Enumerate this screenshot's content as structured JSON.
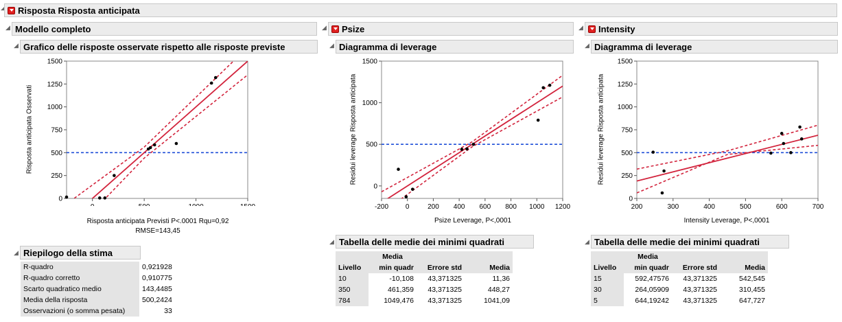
{
  "report": {
    "title": "Risposta Risposta anticipata"
  },
  "panels": {
    "model": {
      "title": "Modello completo",
      "chart_title": "Grafico delle risposte osservate rispetto alle risposte previste",
      "xlabel": "Risposta anticipata Previsti P<.0001 Rqu=0,92",
      "xlabel2": "RMSE=143,45",
      "ylabel": "Risposta anticipata Osservati"
    },
    "psize": {
      "title": "Psize",
      "chart_title": "Diagramma di leverage",
      "xlabel": "Psize Leverage, P<,0001",
      "ylabel": "Residui leverage Risposta anticipata"
    },
    "intensity": {
      "title": "Intensity",
      "chart_title": "Diagramma di leverage",
      "xlabel": "Intensity Leverage, P<,0001",
      "ylabel": "Residui leverage Risposta anticipata"
    }
  },
  "summary": {
    "title": "Riepilogo della stima",
    "rows": [
      {
        "label": "R-quadro",
        "value": "0,921928"
      },
      {
        "label": "R-quadro corretto",
        "value": "0,910775"
      },
      {
        "label": "Scarto quadratico medio",
        "value": "143,4485"
      },
      {
        "label": "Media della risposta",
        "value": "500,2424"
      },
      {
        "label": "Osservazioni (o somma pesata)",
        "value": "33"
      }
    ]
  },
  "lsm_psize": {
    "title": "Tabella delle medie dei minimi quadrati",
    "h_media_top": "Media",
    "h_level": "Livello",
    "h_lsm": "min quadr",
    "h_se": "Errore std",
    "h_mean": "Media",
    "rows": [
      [
        "10",
        "-10,108",
        "43,371325",
        "11,36"
      ],
      [
        "350",
        "461,359",
        "43,371325",
        "448,27"
      ],
      [
        "784",
        "1049,476",
        "43,371325",
        "1041,09"
      ]
    ]
  },
  "lsm_intensity": {
    "title": "Tabella delle medie dei minimi quadrati",
    "h_media_top": "Media",
    "h_level": "Livello",
    "h_lsm": "min quadr",
    "h_se": "Errore std",
    "h_mean": "Media",
    "rows": [
      [
        "15",
        "592,47576",
        "43,371325",
        "542,545"
      ],
      [
        "30",
        "264,05909",
        "43,371325",
        "310,455"
      ],
      [
        "5",
        "644,19242",
        "43,371325",
        "647,727"
      ]
    ]
  },
  "colors": {
    "fit": "#d2233c",
    "mean": "#1f4fd8"
  },
  "chart_data": [
    {
      "type": "scatter",
      "name": "actual-by-predicted",
      "xlim": [
        -250,
        1500
      ],
      "ylim": [
        0,
        1500
      ],
      "xticks": [
        0,
        500,
        1000,
        1500
      ],
      "yticks": [
        0,
        250,
        500,
        750,
        1000,
        1250,
        1500
      ],
      "mean_y": 500,
      "fit": [
        [
          -250,
          -250
        ],
        [
          1500,
          1500
        ]
      ],
      "band_upper": [
        [
          -250,
          -60
        ],
        [
          500,
          560
        ],
        [
          1500,
          1650
        ]
      ],
      "band_lower": [
        [
          -250,
          -440
        ],
        [
          500,
          440
        ],
        [
          1500,
          1350
        ]
      ],
      "points": [
        [
          -250,
          15
        ],
        [
          70,
          5
        ],
        [
          120,
          5
        ],
        [
          210,
          250
        ],
        [
          540,
          540
        ],
        [
          560,
          555
        ],
        [
          600,
          585
        ],
        [
          810,
          600
        ],
        [
          1150,
          1260
        ],
        [
          1190,
          1320
        ]
      ]
    },
    {
      "type": "scatter",
      "name": "psize-leverage",
      "xlim": [
        -200,
        1200
      ],
      "ylim": [
        -150,
        1500
      ],
      "xticks": [
        -200,
        0,
        200,
        400,
        600,
        800,
        1000,
        1200
      ],
      "yticks": [
        0,
        500,
        1000,
        1500
      ],
      "mean_y": 500,
      "fit": [
        [
          -200,
          -200
        ],
        [
          1200,
          1200
        ]
      ],
      "band_upper": [
        [
          -200,
          -70
        ],
        [
          500,
          530
        ],
        [
          1200,
          1330
        ]
      ],
      "band_lower": [
        [
          -200,
          -330
        ],
        [
          500,
          470
        ],
        [
          1200,
          1070
        ]
      ],
      "points": [
        [
          -70,
          200
        ],
        [
          -10,
          -130
        ],
        [
          40,
          -40
        ],
        [
          420,
          440
        ],
        [
          460,
          445
        ],
        [
          510,
          500
        ],
        [
          1010,
          790
        ],
        [
          1050,
          1180
        ],
        [
          1100,
          1210
        ]
      ]
    },
    {
      "type": "scatter",
      "name": "intensity-leverage",
      "xlim": [
        200,
        700
      ],
      "ylim": [
        0,
        1500
      ],
      "xticks": [
        200,
        300,
        400,
        500,
        600,
        700
      ],
      "yticks": [
        0,
        250,
        500,
        750,
        1000,
        1250,
        1500
      ],
      "mean_y": 500,
      "fit": [
        [
          200,
          190
        ],
        [
          700,
          690
        ]
      ],
      "band_upper": [
        [
          200,
          320
        ],
        [
          450,
          520
        ],
        [
          700,
          800
        ]
      ],
      "band_lower": [
        [
          200,
          60
        ],
        [
          450,
          480
        ],
        [
          700,
          580
        ]
      ],
      "points": [
        [
          245,
          505
        ],
        [
          270,
          60
        ],
        [
          275,
          300
        ],
        [
          570,
          495
        ],
        [
          600,
          710
        ],
        [
          605,
          600
        ],
        [
          625,
          500
        ],
        [
          650,
          780
        ],
        [
          655,
          650
        ]
      ]
    }
  ]
}
